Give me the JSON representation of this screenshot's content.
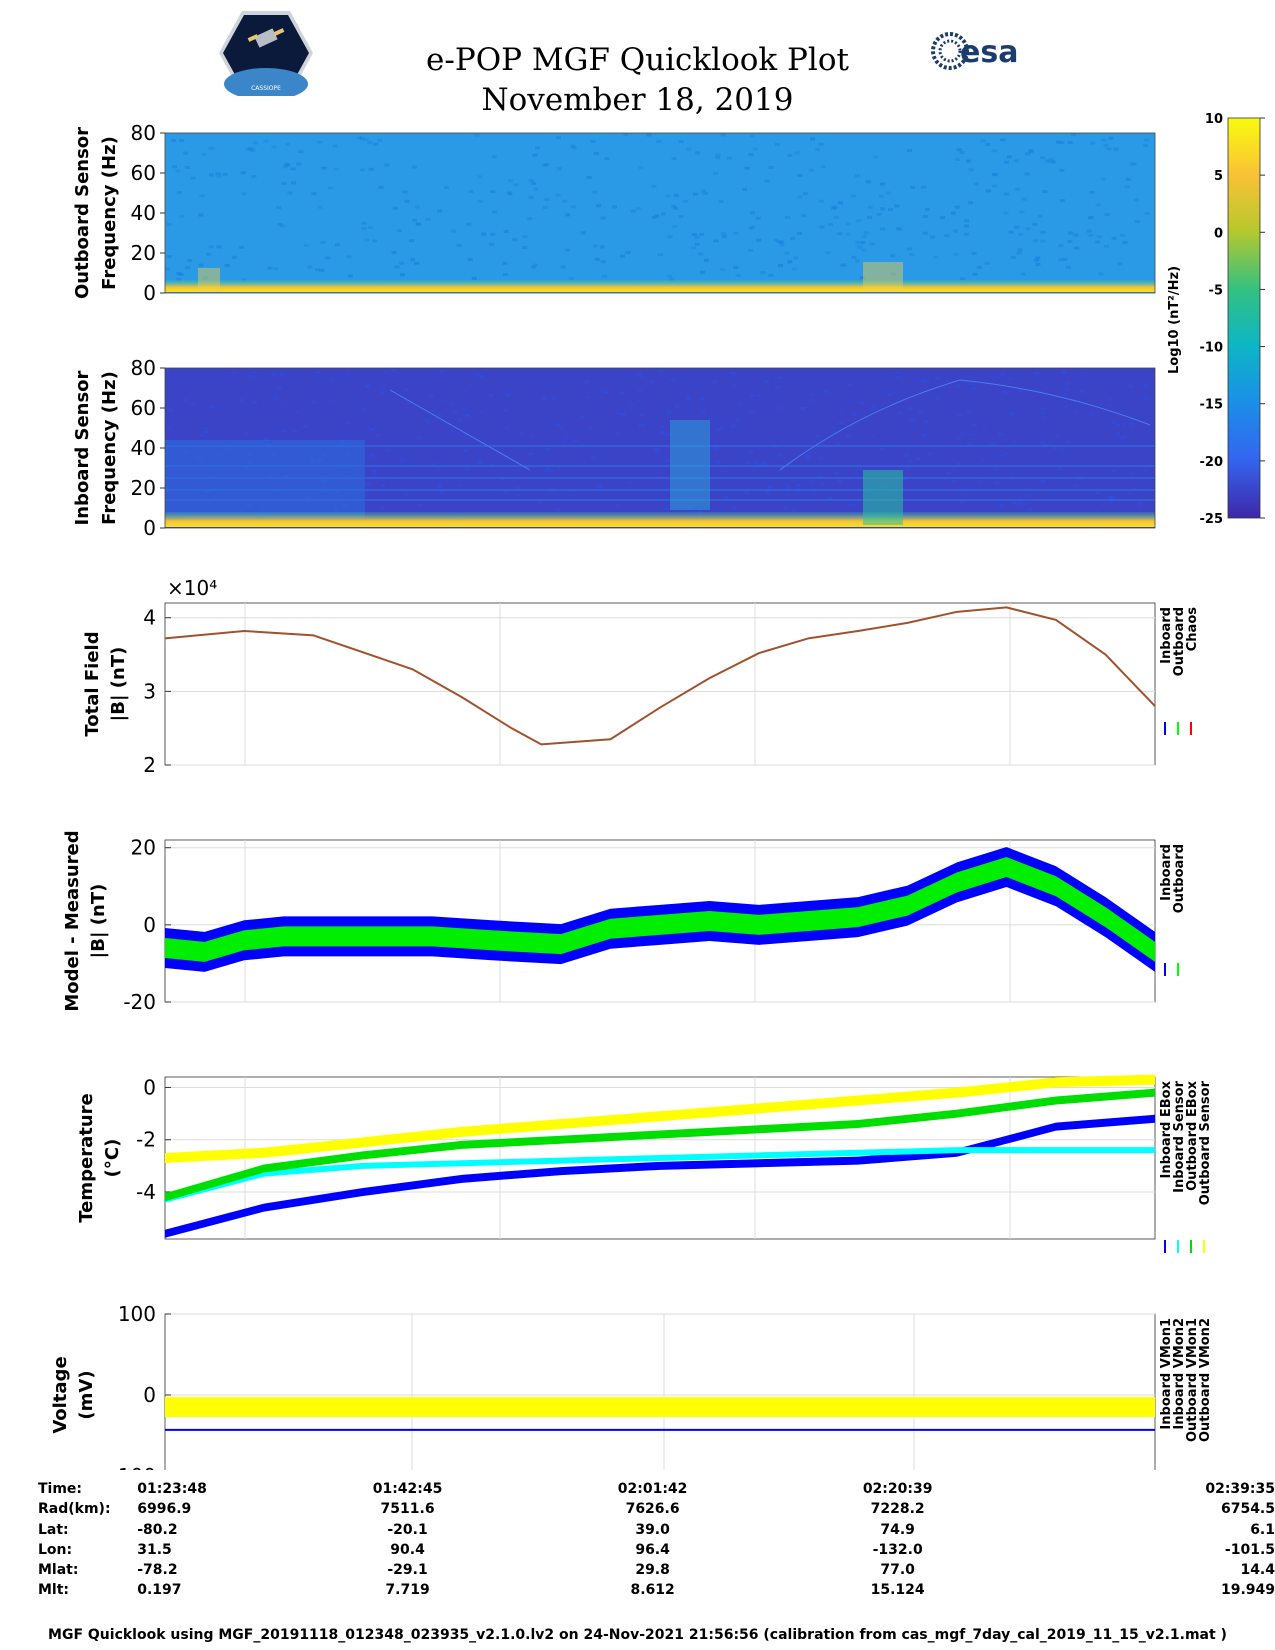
{
  "header": {
    "title": "e-POP MGF Quicklook Plot",
    "date": "November 18, 2019",
    "logo_left_text": "CASSIOPE",
    "logo_right_text": "esa"
  },
  "colorbar": {
    "label": "Log10 (nT²/Hz)",
    "ticks": [
      "10",
      "5",
      "0",
      "-5",
      "-10",
      "-15",
      "-20",
      "-25"
    ],
    "range": [
      -25,
      10
    ]
  },
  "chart_data": [
    {
      "type": "heatmap",
      "name": "outboard-spectrogram",
      "ylabel": "Outboard Sensor Frequency (Hz)",
      "ylabel_lines": [
        "Outboard Sensor",
        "Frequency (Hz)"
      ],
      "ylim": [
        0,
        80
      ],
      "yticks": [
        "80",
        "60",
        "40",
        "20",
        "0"
      ],
      "background_level": -12,
      "low_frequency_band_level": 2
    },
    {
      "type": "heatmap",
      "name": "inboard-spectrogram",
      "ylabel": "Inboard Sensor Frequency (Hz)",
      "ylabel_lines": [
        "Inboard Sensor",
        "Frequency (Hz)"
      ],
      "ylim": [
        0,
        80
      ],
      "yticks": [
        "80",
        "60",
        "40",
        "20",
        "0"
      ],
      "background_level": -22,
      "low_frequency_band_level": 2
    },
    {
      "type": "line",
      "name": "total-field",
      "ylabel_lines": [
        "Total Field",
        "|B| (nT)"
      ],
      "ylim": [
        2,
        4.2
      ],
      "y_multiplier": "×10⁴",
      "yticks": [
        "4",
        "3",
        "2"
      ],
      "legend": [
        "Inboard",
        "Outboard",
        "Chaos"
      ],
      "legend_colors": [
        "#0000ff",
        "#00ff00",
        "#ff0000"
      ],
      "x": [
        0,
        0.08,
        0.15,
        0.25,
        0.3,
        0.35,
        0.38,
        0.45,
        0.5,
        0.55,
        0.6,
        0.65,
        0.7,
        0.75,
        0.8,
        0.85,
        0.9,
        0.95,
        1.0
      ],
      "series": [
        {
          "name": "Chaos",
          "values": [
            3.72,
            3.82,
            3.76,
            3.3,
            2.92,
            2.5,
            2.28,
            2.35,
            2.78,
            3.18,
            3.52,
            3.72,
            3.82,
            3.93,
            4.08,
            4.14,
            3.97,
            3.5,
            2.8
          ]
        }
      ]
    },
    {
      "type": "line",
      "name": "model-measured",
      "ylabel_lines": [
        "Model - Measured",
        "|B| (nT)"
      ],
      "ylim": [
        -20,
        22
      ],
      "yticks": [
        "20",
        "0",
        "-20"
      ],
      "legend": [
        "Inboard",
        "Outboard"
      ],
      "legend_colors": [
        "#0000ff",
        "#00ff00"
      ],
      "x": [
        0,
        0.04,
        0.08,
        0.12,
        0.2,
        0.27,
        0.33,
        0.4,
        0.45,
        0.5,
        0.55,
        0.6,
        0.65,
        0.7,
        0.75,
        0.8,
        0.85,
        0.9,
        0.95,
        1.0
      ],
      "series": [
        {
          "name": "Inboard",
          "values": [
            -6,
            -7,
            -4,
            -3,
            -3,
            -3,
            -4,
            -5,
            -1,
            0,
            1,
            0,
            1,
            2,
            5,
            11,
            15,
            10,
            2,
            -7
          ]
        },
        {
          "name": "Outboard",
          "values": [
            -6,
            -7,
            -4,
            -3,
            -3,
            -3,
            -4,
            -5,
            -1,
            0,
            1,
            0,
            1,
            2,
            5,
            11,
            15,
            10,
            2,
            -7
          ]
        }
      ]
    },
    {
      "type": "line",
      "name": "temperature",
      "ylabel_lines": [
        "Temperature",
        "(°C)"
      ],
      "ylim": [
        -5.8,
        0.4
      ],
      "yticks": [
        "0",
        "-2",
        "-4"
      ],
      "legend": [
        "Inboard EBox",
        "Inboard Sensor",
        "Outboard EBox",
        "Outboard Sensor"
      ],
      "legend_colors": [
        "#0000ff",
        "#00ffff",
        "#00dd00",
        "#ffff00"
      ],
      "x": [
        0,
        0.1,
        0.2,
        0.3,
        0.4,
        0.5,
        0.6,
        0.7,
        0.8,
        0.9,
        1.0
      ],
      "series": [
        {
          "name": "Inboard EBox",
          "values": [
            -5.6,
            -4.6,
            -4.0,
            -3.5,
            -3.2,
            -3.0,
            -2.9,
            -2.8,
            -2.5,
            -1.5,
            -1.2
          ]
        },
        {
          "name": "Inboard Sensor",
          "values": [
            -4.3,
            -3.3,
            -3.0,
            -2.9,
            -2.8,
            -2.7,
            -2.6,
            -2.5,
            -2.4,
            -2.4,
            -2.4
          ]
        },
        {
          "name": "Outboard EBox",
          "values": [
            -4.2,
            -3.1,
            -2.6,
            -2.2,
            -2.0,
            -1.8,
            -1.6,
            -1.4,
            -1.0,
            -0.5,
            -0.2
          ]
        },
        {
          "name": "Outboard Sensor",
          "values": [
            -2.7,
            -2.5,
            -2.1,
            -1.7,
            -1.4,
            -1.1,
            -0.8,
            -0.5,
            -0.2,
            0.2,
            0.3
          ]
        }
      ]
    },
    {
      "type": "line",
      "name": "voltage",
      "ylabel_lines": [
        "Voltage",
        "(mV)"
      ],
      "ylim": [
        -100,
        100
      ],
      "yticks": [
        "100",
        "0",
        "-100"
      ],
      "legend": [
        "Inboard VMon1",
        "Inboard VMon2",
        "Outboard VMon1",
        "Outboard VMon2"
      ],
      "legend_colors": [
        "#0000ff",
        "#00ffff",
        "#00dd00",
        "#ffff00"
      ],
      "x": [
        0,
        1.0
      ],
      "series": [
        {
          "name": "Inboard VMon1",
          "values": [
            -43,
            -43
          ]
        },
        {
          "name": "Inboard VMon2",
          "values": [
            -6,
            -6
          ]
        },
        {
          "name": "Outboard VMon1",
          "values": [
            -7,
            -7
          ]
        },
        {
          "name": "Outboard VMon2",
          "values": [
            -15,
            -15
          ]
        }
      ]
    }
  ],
  "ephemeris": {
    "labels": [
      "Time:",
      "Rad(km):",
      "Lat:",
      "Lon:",
      "Mlat:",
      "Mlt:"
    ],
    "columns": [
      [
        "01:23:48",
        "6996.9",
        "-80.2",
        "31.5",
        "-78.2",
        "0.197"
      ],
      [
        "01:42:45",
        "7511.6",
        "-20.1",
        "90.4",
        "-29.1",
        "7.719"
      ],
      [
        "02:01:42",
        "7626.6",
        "39.0",
        "96.4",
        "29.8",
        "8.612"
      ],
      [
        "02:20:39",
        "7228.2",
        "74.9",
        "-132.0",
        "77.0",
        "15.124"
      ],
      [
        "02:39:35",
        "6754.5",
        "6.1",
        "-101.5",
        "14.4",
        "19.949"
      ]
    ]
  },
  "footer": "MGF Quicklook using MGF_20191118_012348_023935_v2.1.0.lv2 on 24-Nov-2021 21:56:56 (calibration from cas_mgf_7day_cal_2019_11_15_v2.1.mat )"
}
